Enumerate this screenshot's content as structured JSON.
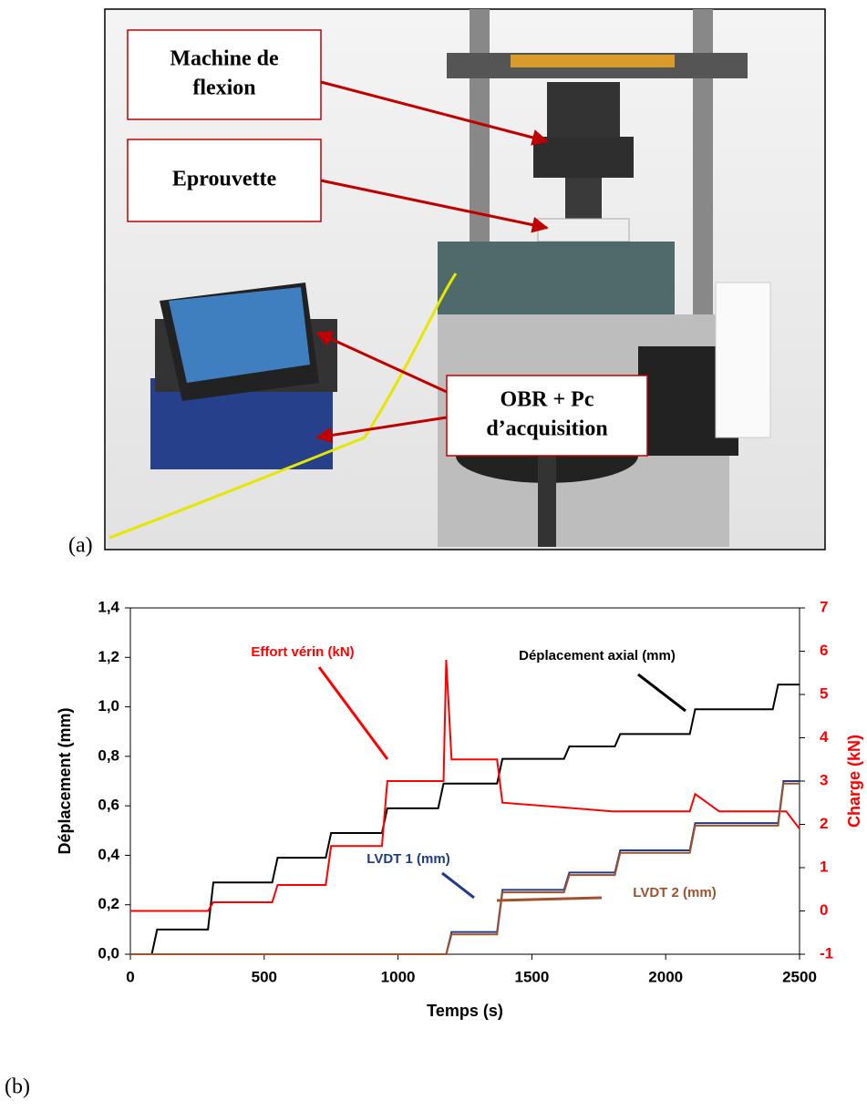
{
  "panel_labels": [
    "(a)",
    "(b)"
  ],
  "photo": {
    "labels": [
      [
        "Machine de",
        "flexion"
      ],
      [
        "Eprouvette"
      ],
      [
        "OBR + Pc",
        "d’acquisition"
      ]
    ]
  },
  "chart_data": {
    "type": "line",
    "xlabel": "Temps (s)",
    "ylabel": "Déplacement  (mm)",
    "y2label": "Charge (kN)",
    "xlim": [
      0,
      2500
    ],
    "xticks": [
      0,
      500,
      1000,
      1500,
      2000,
      2500
    ],
    "ylim": [
      0,
      1.4
    ],
    "yticks": [
      {
        "value": 0,
        "label": "0,0"
      },
      {
        "value": 0.2,
        "label": "0,2"
      },
      {
        "value": 0.4,
        "label": "0,4"
      },
      {
        "value": 0.6,
        "label": "0,6"
      },
      {
        "value": 0.8,
        "label": "0,8"
      },
      {
        "value": 1.0,
        "label": "1,0"
      },
      {
        "value": 1.2,
        "label": "1,2"
      },
      {
        "value": 1.4,
        "label": "1,4"
      }
    ],
    "y2lim": [
      -1,
      7
    ],
    "y2ticks": [
      -1,
      0,
      1,
      2,
      3,
      4,
      5,
      6,
      7
    ],
    "series": [
      {
        "name": "Déplacement axial (mm)",
        "color": "#000000",
        "x": [
          80,
          100,
          290,
          310,
          530,
          550,
          730,
          750,
          940,
          960,
          1150,
          1170,
          1370,
          1390,
          1620,
          1640,
          1810,
          1830,
          2090,
          2110,
          2400,
          2420,
          2500
        ],
        "values": [
          0,
          0.1,
          0.1,
          0.29,
          0.29,
          0.39,
          0.39,
          0.49,
          0.49,
          0.59,
          0.59,
          0.69,
          0.69,
          0.79,
          0.79,
          0.84,
          0.84,
          0.89,
          0.89,
          0.99,
          0.99,
          1.09,
          1.09
        ]
      },
      {
        "name": "Effort vérin (kN)",
        "color": "#ff0000",
        "axis": "y2",
        "x": [
          0,
          290,
          310,
          530,
          550,
          730,
          750,
          940,
          960,
          1170,
          1180,
          1200,
          1370,
          1390,
          1600,
          1800,
          2090,
          2110,
          2200,
          2450,
          2500
        ],
        "values": [
          0,
          0,
          0.2,
          0.2,
          0.6,
          0.6,
          1.5,
          1.5,
          3.0,
          3.0,
          5.8,
          3.5,
          3.5,
          2.5,
          2.4,
          2.3,
          2.3,
          2.7,
          2.3,
          2.3,
          1.9
        ]
      },
      {
        "name": "LVDT 1 (mm)",
        "color": "#1f3c88",
        "x": [
          0,
          1180,
          1200,
          1370,
          1390,
          1620,
          1640,
          1810,
          1830,
          2090,
          2110,
          2420,
          2440,
          2500
        ],
        "values": [
          0,
          0,
          0.09,
          0.09,
          0.26,
          0.26,
          0.33,
          0.33,
          0.42,
          0.42,
          0.53,
          0.53,
          0.7,
          0.7
        ]
      },
      {
        "name": "LVDT 2 (mm)",
        "color": "#a0522d",
        "x": [
          0,
          1180,
          1200,
          1370,
          1390,
          1620,
          1640,
          1810,
          1830,
          2090,
          2110,
          2420,
          2440,
          2500
        ],
        "values": [
          0,
          0,
          0.08,
          0.08,
          0.25,
          0.25,
          0.32,
          0.32,
          0.41,
          0.41,
          0.52,
          0.52,
          0.69,
          0.69
        ]
      }
    ]
  }
}
